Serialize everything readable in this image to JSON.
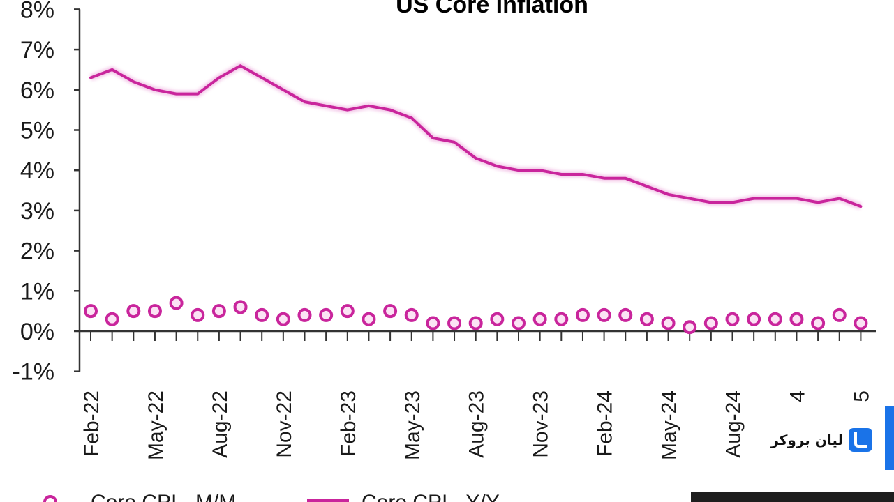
{
  "chart_data": {
    "type": "line",
    "title": "US Core Inflation",
    "ylim": [
      -1,
      8
    ],
    "yticks": [
      "-1%",
      "0%",
      "1%",
      "2%",
      "3%",
      "4%",
      "5%",
      "6%",
      "7%",
      "8%"
    ],
    "x_tick_labels": [
      "Feb-22",
      "May-22",
      "Aug-22",
      "Nov-22",
      "Feb-23",
      "May-23",
      "Aug-23",
      "Nov-23",
      "Feb-24",
      "May-24",
      "Aug-24",
      "4",
      "5"
    ],
    "grid": false,
    "legend_position": "bottom",
    "series": [
      {
        "name": "Core CPI - M/M",
        "marker": "circle",
        "color": "#c9259c",
        "values": [
          0.5,
          0.3,
          0.5,
          0.5,
          0.7,
          0.4,
          0.5,
          0.6,
          0.4,
          0.3,
          0.4,
          0.4,
          0.5,
          0.3,
          0.5,
          0.4,
          0.2,
          0.2,
          0.2,
          0.3,
          0.2,
          0.3,
          0.3,
          0.4,
          0.4,
          0.4,
          0.3,
          0.2,
          0.1,
          0.2,
          0.3,
          0.3,
          0.3,
          0.3,
          0.2,
          0.4,
          0.2
        ]
      },
      {
        "name": "Core CPI - Y/Y",
        "marker": "none",
        "color": "#c9259c",
        "values": [
          6.3,
          6.5,
          6.2,
          6.0,
          5.9,
          5.9,
          6.3,
          6.6,
          6.3,
          6.0,
          5.7,
          5.6,
          5.5,
          5.6,
          5.5,
          5.3,
          4.8,
          4.7,
          4.3,
          4.1,
          4.0,
          4.0,
          3.9,
          3.9,
          3.8,
          3.8,
          3.6,
          3.4,
          3.3,
          3.2,
          3.2,
          3.3,
          3.3,
          3.3,
          3.2,
          3.3,
          3.1
        ]
      }
    ]
  },
  "watermark": {
    "text": "لیان بروکر"
  }
}
